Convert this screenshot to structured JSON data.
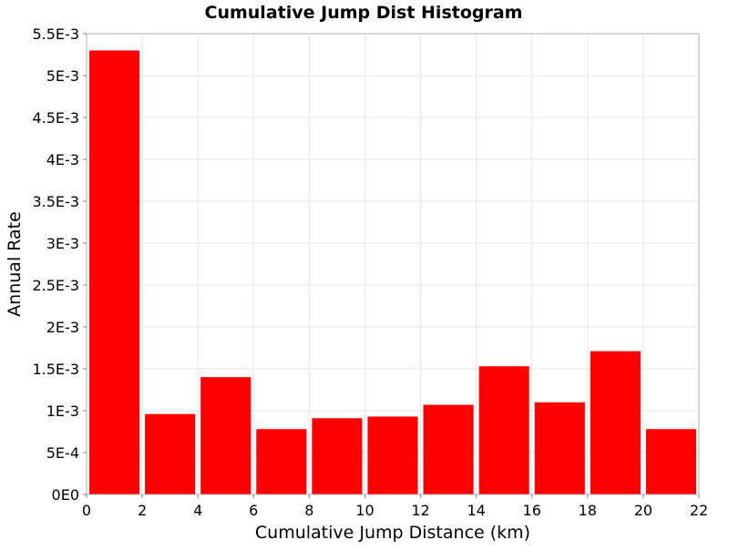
{
  "chart_data": {
    "type": "bar",
    "title": "Cumulative Jump Dist Histogram",
    "xlabel": "Cumulative Jump Distance (km)",
    "ylabel": "Annual Rate",
    "xlim": [
      0,
      22
    ],
    "ylim": [
      0,
      0.0055
    ],
    "grid": true,
    "bar_color": "#ff0000",
    "bin_width": 2,
    "bins": [
      {
        "x0": 0,
        "x1": 2,
        "value": 0.0053
      },
      {
        "x0": 2,
        "x1": 4,
        "value": 0.00096
      },
      {
        "x0": 4,
        "x1": 6,
        "value": 0.0014
      },
      {
        "x0": 6,
        "x1": 8,
        "value": 0.00078
      },
      {
        "x0": 8,
        "x1": 10,
        "value": 0.00091
      },
      {
        "x0": 10,
        "x1": 12,
        "value": 0.00093
      },
      {
        "x0": 12,
        "x1": 14,
        "value": 0.00107
      },
      {
        "x0": 14,
        "x1": 16,
        "value": 0.00153
      },
      {
        "x0": 16,
        "x1": 18,
        "value": 0.0011
      },
      {
        "x0": 18,
        "x1": 20,
        "value": 0.00171
      },
      {
        "x0": 20,
        "x1": 22,
        "value": 0.00078
      }
    ],
    "x_ticks": [
      {
        "value": 0,
        "label": "0"
      },
      {
        "value": 2,
        "label": "2"
      },
      {
        "value": 4,
        "label": "4"
      },
      {
        "value": 6,
        "label": "6"
      },
      {
        "value": 8,
        "label": "8"
      },
      {
        "value": 10,
        "label": "10"
      },
      {
        "value": 12,
        "label": "12"
      },
      {
        "value": 14,
        "label": "14"
      },
      {
        "value": 16,
        "label": "16"
      },
      {
        "value": 18,
        "label": "18"
      },
      {
        "value": 20,
        "label": "20"
      },
      {
        "value": 22,
        "label": "22"
      }
    ],
    "y_ticks": [
      {
        "value": 0,
        "label": "0E0"
      },
      {
        "value": 0.0005,
        "label": "5E-4"
      },
      {
        "value": 0.001,
        "label": "1E-3"
      },
      {
        "value": 0.0015,
        "label": "1.5E-3"
      },
      {
        "value": 0.002,
        "label": "2E-3"
      },
      {
        "value": 0.0025,
        "label": "2.5E-3"
      },
      {
        "value": 0.003,
        "label": "3E-3"
      },
      {
        "value": 0.0035,
        "label": "3.5E-3"
      },
      {
        "value": 0.004,
        "label": "4E-3"
      },
      {
        "value": 0.0045,
        "label": "4.5E-3"
      },
      {
        "value": 0.005,
        "label": "5E-3"
      },
      {
        "value": 0.0055,
        "label": "5.5E-3"
      }
    ]
  }
}
